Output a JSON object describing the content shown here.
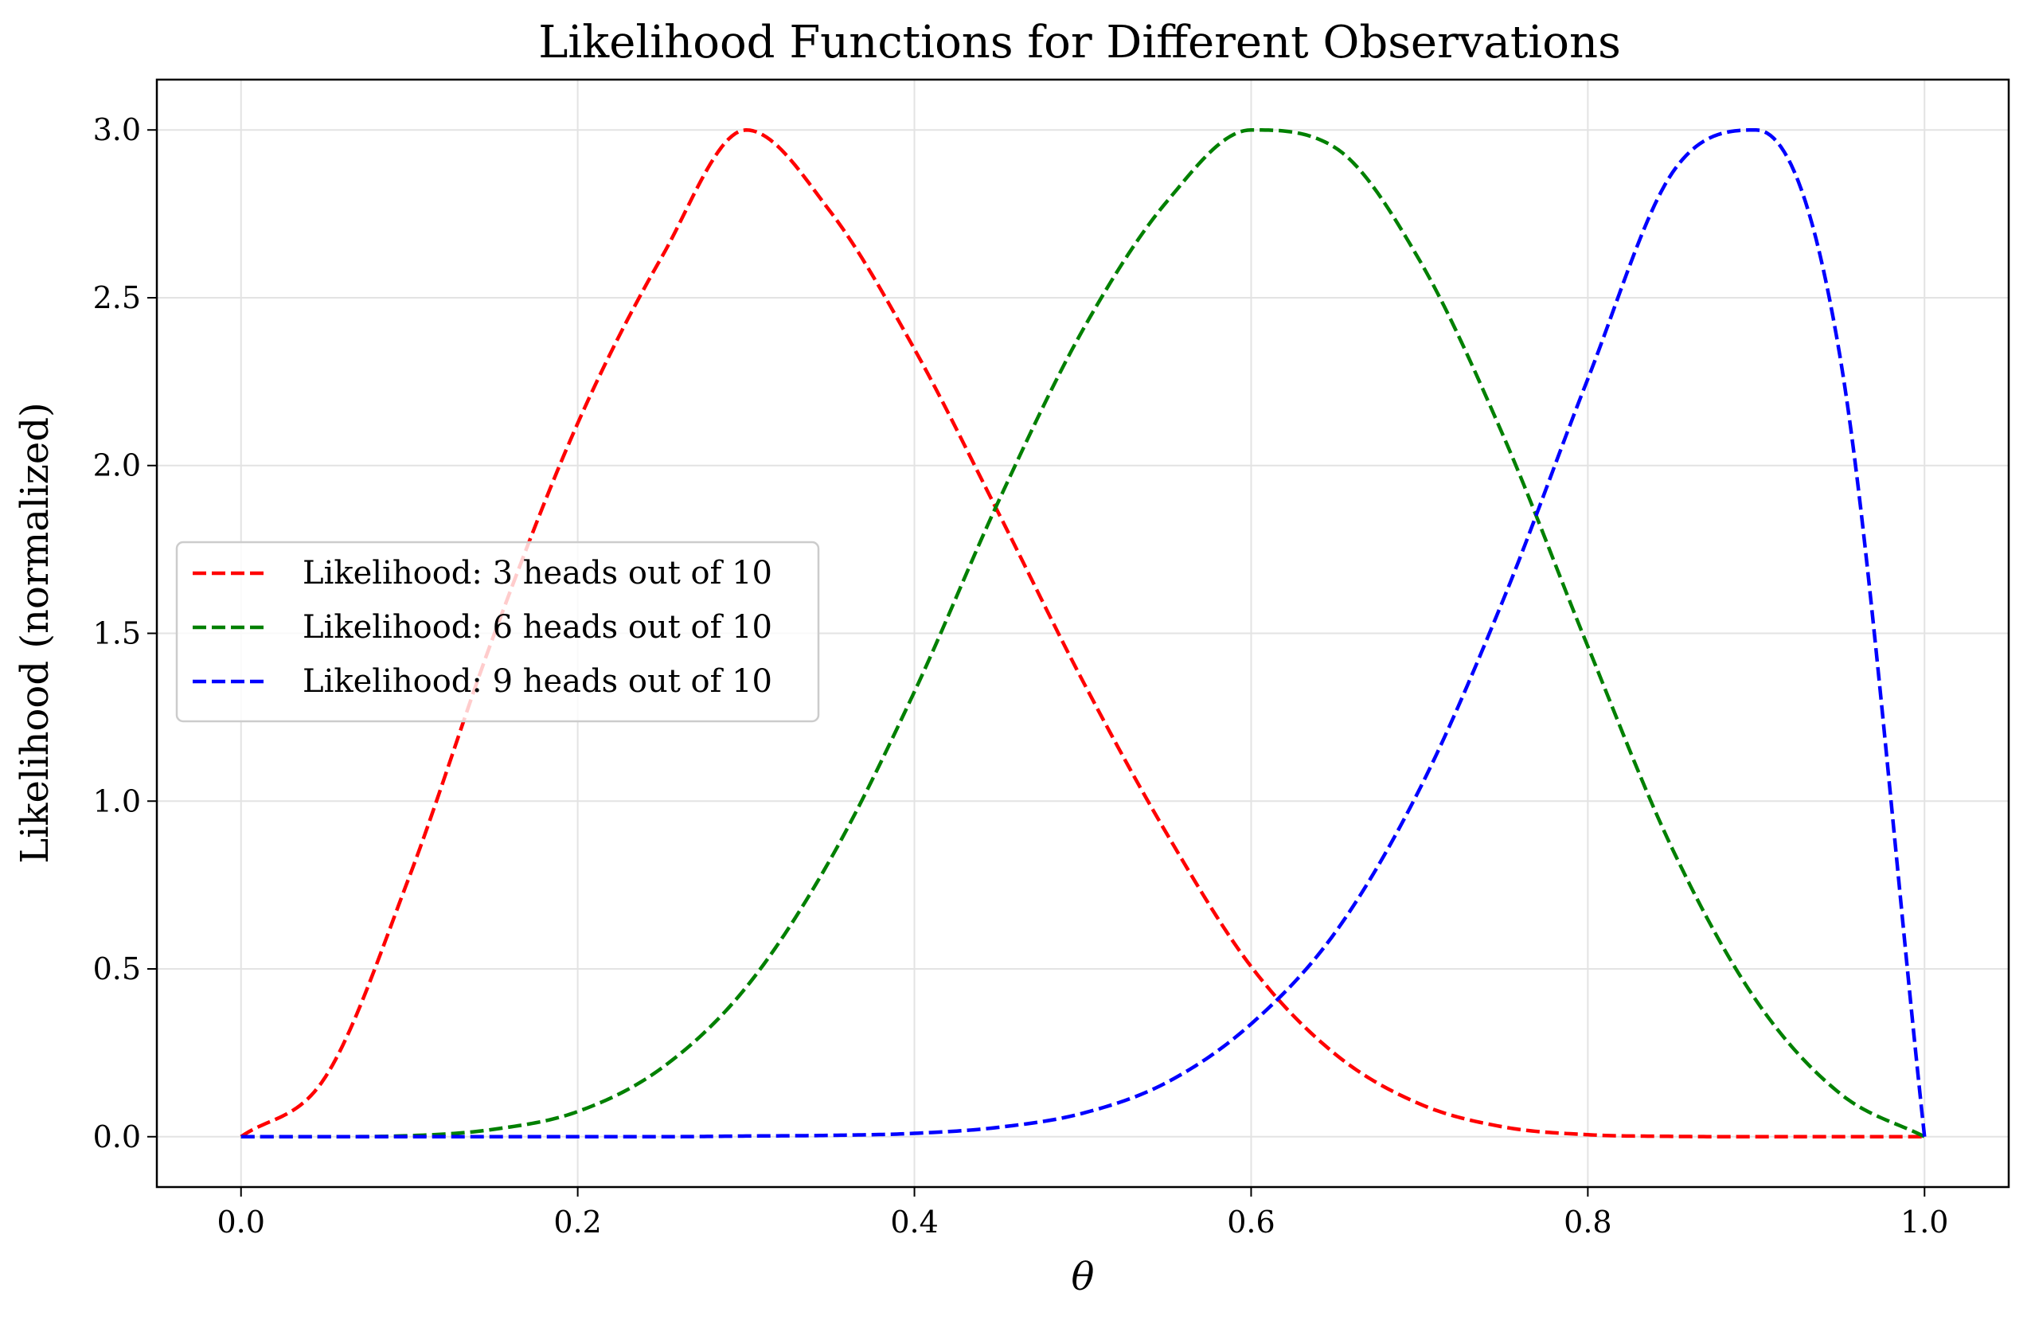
{
  "chart_data": {
    "type": "line",
    "title": "Likelihood Functions for Different Observations",
    "xlabel": "θ",
    "ylabel": "Likelihood (normalized)",
    "xlim": [
      -0.05,
      1.05
    ],
    "ylim": [
      -0.15,
      3.15
    ],
    "xticks": [
      0.0,
      0.2,
      0.4,
      0.6,
      0.8,
      1.0
    ],
    "xtick_labels": [
      "0.0",
      "0.2",
      "0.4",
      "0.6",
      "0.8",
      "1.0"
    ],
    "yticks": [
      0.0,
      0.5,
      1.0,
      1.5,
      2.0,
      2.5,
      3.0
    ],
    "ytick_labels": [
      "0.0",
      "0.5",
      "1.0",
      "1.5",
      "2.0",
      "2.5",
      "3.0"
    ],
    "grid": true,
    "legend_position": "center-left",
    "x": [
      0.0,
      0.05,
      0.1,
      0.15,
      0.2,
      0.25,
      0.3,
      0.35,
      0.4,
      0.45,
      0.5,
      0.55,
      0.6,
      0.65,
      0.7,
      0.75,
      0.8,
      0.85,
      0.9,
      0.95,
      1.0
    ],
    "series": [
      {
        "name": "Likelihood: 3 heads out of 10",
        "color": "#ff0000",
        "line_style": "dashed",
        "values": [
          0.0,
          0.177,
          0.775,
          1.492,
          2.126,
          2.622,
          3.0,
          2.757,
          2.347,
          1.858,
          1.358,
          0.902,
          0.507,
          0.246,
          0.098,
          0.029,
          0.006,
          0.001,
          0.0,
          0.0,
          0.0
        ]
      },
      {
        "name": "Likelihood: 6 heads out of 10",
        "color": "#008000",
        "line_style": "dashed",
        "values": [
          0.0,
          0.0,
          0.003,
          0.022,
          0.075,
          0.205,
          0.445,
          0.826,
          1.326,
          1.894,
          2.404,
          2.787,
          3.0,
          2.947,
          2.612,
          2.086,
          1.461,
          0.86,
          0.406,
          0.128,
          0.0
        ]
      },
      {
        "name": "Likelihood: 9 heads out of 10",
        "color": "#0000ff",
        "line_style": "dashed",
        "values": [
          0.0,
          0.0,
          0.0,
          0.0,
          0.0,
          0.0,
          0.002,
          0.004,
          0.01,
          0.028,
          0.07,
          0.162,
          0.336,
          0.609,
          1.035,
          1.603,
          2.258,
          2.871,
          3.0,
          2.319,
          0.0
        ]
      }
    ]
  }
}
